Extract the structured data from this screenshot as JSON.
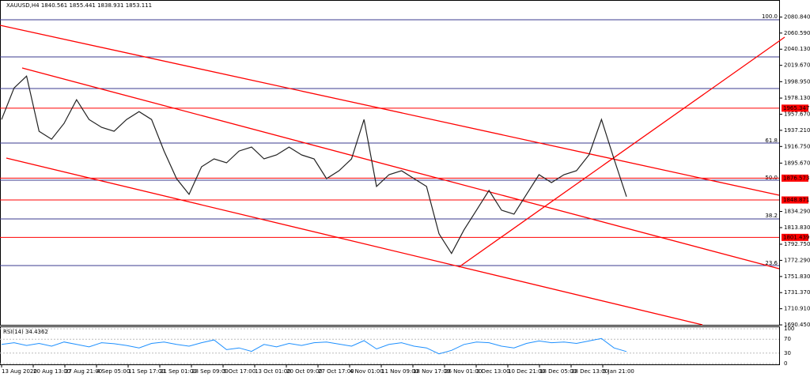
{
  "chart_data": {
    "type": "line",
    "title": "XAUUSD,H4  1840.561 1855.441 1838.931 1853.111",
    "color": "#222222",
    "values": [
      1951,
      1991,
      2006,
      1936,
      1926,
      1946,
      1976,
      1951,
      1941,
      1936,
      1951,
      1961,
      1951,
      1911,
      1876,
      1856,
      1891,
      1901,
      1896,
      1911,
      1916,
      1901,
      1906,
      1916,
      1906,
      1901,
      1876,
      1886,
      1901,
      1951,
      1866,
      1881,
      1886,
      1876,
      1866,
      1806,
      1781,
      1811,
      1836,
      1861,
      1836,
      1831,
      1856,
      1881,
      1871,
      1881,
      1886,
      1906,
      1951,
      1901,
      1853.111
    ],
    "ylim": [
      1689.5,
      2090.5
    ],
    "yticks": [
      {
        "value": 2080.84,
        "label": "2080.840"
      },
      {
        "value": 2060.59,
        "label": "2060.590"
      },
      {
        "value": 2040.13,
        "label": "2040.130"
      },
      {
        "value": 2019.67,
        "label": "2019.670"
      },
      {
        "value": 1998.95,
        "label": "1998.950"
      },
      {
        "value": 1978.13,
        "label": "1978.130"
      },
      {
        "value": 1957.67,
        "label": "1957.670"
      },
      {
        "value": 1937.21,
        "label": "1937.210"
      },
      {
        "value": 1916.75,
        "label": "1916.750"
      },
      {
        "value": 1895.67,
        "label": "1895.670"
      },
      {
        "value": 1834.29,
        "label": "1834.290"
      },
      {
        "value": 1813.83,
        "label": "1813.830"
      },
      {
        "value": 1792.75,
        "label": "1792.750"
      },
      {
        "value": 1772.29,
        "label": "1772.290"
      },
      {
        "value": 1751.83,
        "label": "1751.830"
      },
      {
        "value": 1731.37,
        "label": "1731.370"
      },
      {
        "value": 1710.91,
        "label": "1710.910"
      },
      {
        "value": 1690.45,
        "label": "1690.450"
      }
    ],
    "levels": [
      {
        "value": 1965.347,
        "label": "1965.347",
        "color": "#ff0000"
      },
      {
        "value": 1876.573,
        "label": "1876.573",
        "color": "#ff0000"
      },
      {
        "value": 1848.871,
        "label": "1848.871",
        "color": "#ff0000"
      },
      {
        "value": 1801.439,
        "label": "1801.439",
        "color": "#ff0000"
      }
    ],
    "fib_labels": [
      "100.0",
      "61.8",
      "50.0",
      "38.2",
      "23.6"
    ],
    "time_labels": [
      "13 Aug 2020",
      "20 Aug 13:00",
      "27 Aug 21:00",
      "4 Sep 05:00",
      "11 Sep 17:00",
      "21 Sep 01:00",
      "28 Sep 09:00",
      "5 Oct 17:00",
      "13 Oct 01:00",
      "20 Oct 09:00",
      "27 Oct 17:00",
      "4 Nov 01:00",
      "11 Nov 09:00",
      "18 Nov 17:00",
      "26 Nov 01:00",
      "3 Dec 13:00",
      "10 Dec 21:00",
      "18 Dec 05:00",
      "28 Dec 13:00",
      "5 Jan 21:00"
    ],
    "rsi": {
      "title": "RSI(14) 34.4362",
      "color": "#1e90ff",
      "values": [
        55,
        60,
        52,
        58,
        50,
        62,
        55,
        48,
        60,
        57,
        52,
        45,
        58,
        62,
        55,
        50,
        60,
        68,
        40,
        45,
        35,
        55,
        48,
        58,
        52,
        60,
        62,
        56,
        50,
        66,
        42,
        55,
        60,
        50,
        45,
        28,
        38,
        55,
        62,
        60,
        50,
        45,
        58,
        65,
        60,
        62,
        58,
        65,
        72,
        45,
        34.4362
      ],
      "ylim": [
        0,
        100
      ],
      "yticks": [
        100,
        70,
        30,
        0
      ]
    }
  }
}
